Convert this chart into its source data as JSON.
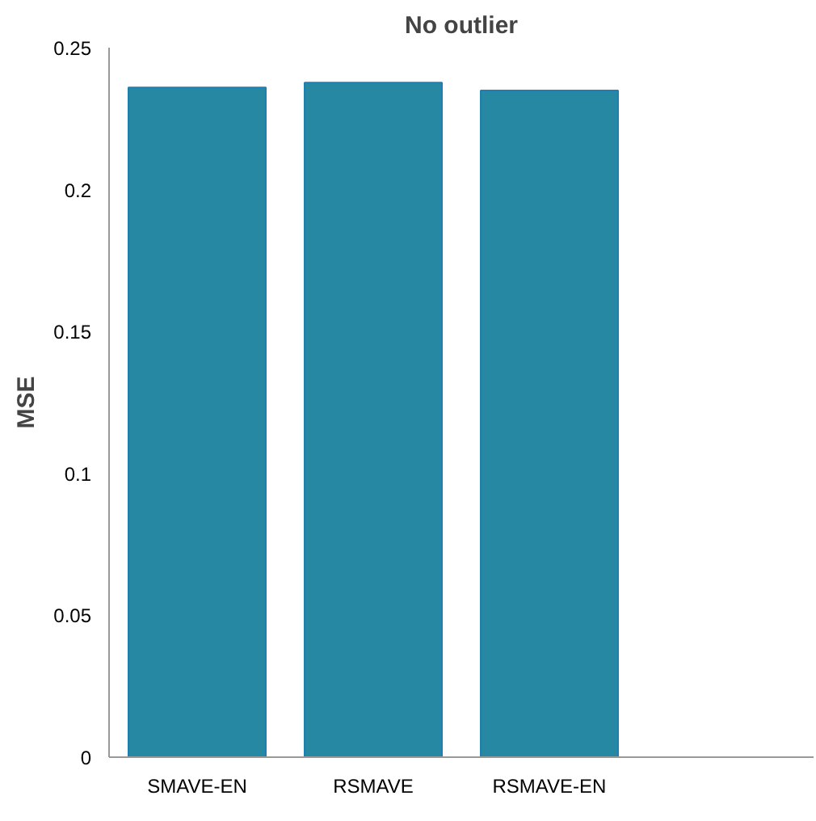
{
  "chart_data": {
    "type": "bar",
    "title": "No outlier",
    "ylabel": "MSE",
    "categories": [
      "SMAVE-EN",
      "RSMAVE",
      "RSMAVE-EN",
      null
    ],
    "values": [
      0.236,
      0.2377,
      0.2349,
      null
    ],
    "color": "#2788a3",
    "ylim": [
      0,
      0.25
    ],
    "yticks": [
      {
        "value": 0,
        "label": "0"
      },
      0.05,
      {
        "value": 0.1,
        "label": "0.1"
      },
      0.15,
      {
        "value": 0.2,
        "label": "0.2"
      },
      0.25
    ],
    "grid": false
  }
}
